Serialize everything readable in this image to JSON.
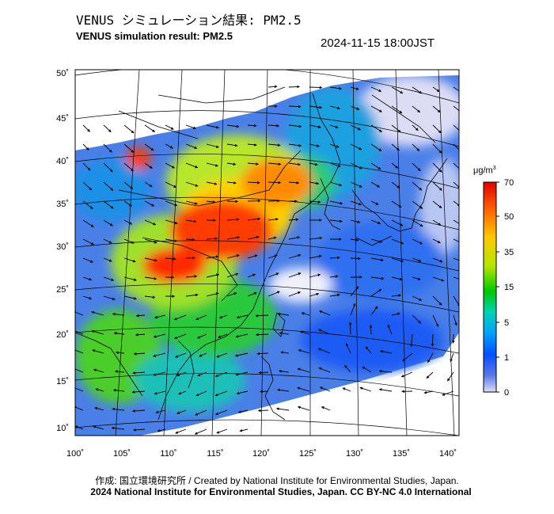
{
  "title_jp": "VENUS シミュレーション結果: PM2.5",
  "title_en": "VENUS simulation result: PM2.5",
  "datetime": "2024-11-15 18:00JST",
  "credit_line1": "作成: 国立環境研究所 / Created by National Institute for Environmental Studies, Japan.",
  "credit_line2": "2024 National Institute for Environmental Studies, Japan. CC BY-NC 4.0 International",
  "map": {
    "lon_ticks": [
      "100˚",
      "105˚",
      "110˚",
      "115˚",
      "120˚",
      "125˚",
      "130˚",
      "135˚",
      "140˚"
    ],
    "lat_ticks": [
      "50˚",
      "45˚",
      "40˚",
      "35˚",
      "30˚",
      "25˚",
      "20˚",
      "15˚",
      "10˚"
    ]
  },
  "colorbar": {
    "unit": "μg/m",
    "unit_sup": "3",
    "tick_labels": [
      "70",
      "50",
      "35",
      "15",
      "5",
      "1",
      "0"
    ],
    "colors": [
      "#e00000",
      "#ff5a00",
      "#ffc800",
      "#b4e600",
      "#00c800",
      "#00d2b4",
      "#00a0ff",
      "#0050ff",
      "#5a78e6",
      "#dcdcf5"
    ]
  }
}
